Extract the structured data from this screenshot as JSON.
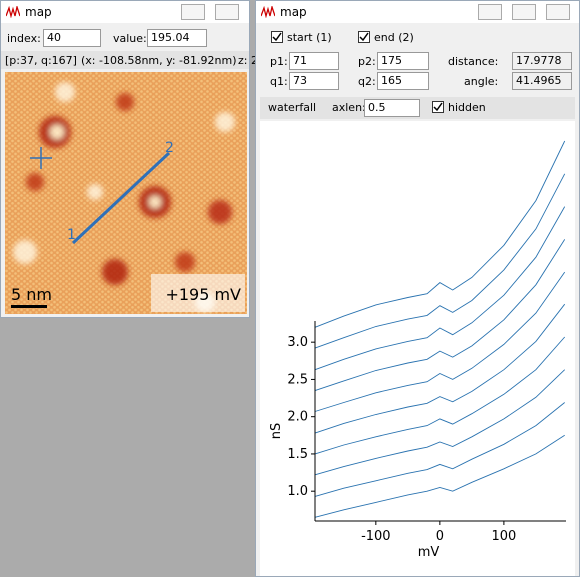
{
  "left_window": {
    "title": "map",
    "index_label": "index:",
    "index": "40",
    "value_label": "value:",
    "value": "195.04",
    "status": [
      "[p:37, q:167]",
      "(x: -108.58nm, y: -81.92nm)",
      "z: 2"
    ],
    "image": {
      "marker_start": "1",
      "marker_end": "2",
      "scale_bar": "5 nm",
      "bias": "+195 mV"
    }
  },
  "right_window": {
    "title": "map",
    "start": "start (1)",
    "end": "end (2)",
    "p1_label": "p1:",
    "p1": "71",
    "p2_label": "p2:",
    "p2": "175",
    "distance_label": "distance:",
    "distance": "17.9778",
    "q1_label": "q1:",
    "q1": "73",
    "q2_label": "q2:",
    "q2": "165",
    "angle_label": "angle:",
    "angle": "41.4965",
    "waterfall": "waterfall",
    "axlen_label": "axlen:",
    "axlen": "0.5",
    "hidden": "hidden",
    "plot": {
      "type": "line",
      "color": "#2a73b0",
      "xlabel": "mV",
      "ylabel": "nS",
      "xlim": [
        -195,
        197
      ],
      "ylim": [
        0.6,
        5.7
      ],
      "xticks": [
        -100,
        0,
        100
      ],
      "yticks": [
        {
          "value": 1.0,
          "label": "1.0"
        },
        {
          "value": 1.5,
          "label": "1.5"
        },
        {
          "value": 2.0,
          "label": "2.0"
        },
        {
          "value": 2.5,
          "label": "2.5"
        },
        {
          "value": 3.0,
          "label": "3.0"
        }
      ],
      "x": [
        -195,
        -150,
        -100,
        -50,
        -20,
        0,
        20,
        50,
        100,
        150,
        195
      ],
      "series": [
        {
          "values": [
            0.65,
            0.75,
            0.85,
            0.95,
            1.0,
            1.05,
            1.0,
            1.12,
            1.3,
            1.5,
            1.75
          ]
        },
        {
          "values": [
            0.93,
            1.04,
            1.14,
            1.24,
            1.29,
            1.36,
            1.3,
            1.43,
            1.63,
            1.88,
            2.19
          ]
        },
        {
          "values": [
            1.22,
            1.33,
            1.44,
            1.54,
            1.59,
            1.66,
            1.6,
            1.73,
            1.97,
            2.26,
            2.63
          ]
        },
        {
          "values": [
            1.5,
            1.62,
            1.73,
            1.83,
            1.88,
            1.97,
            1.9,
            2.04,
            2.3,
            2.63,
            3.07
          ]
        },
        {
          "values": [
            1.78,
            1.91,
            2.03,
            2.13,
            2.18,
            2.27,
            2.2,
            2.34,
            2.63,
            3.01,
            3.51
          ]
        },
        {
          "values": [
            2.07,
            2.19,
            2.32,
            2.42,
            2.47,
            2.58,
            2.5,
            2.65,
            2.97,
            3.39,
            3.94
          ]
        },
        {
          "values": [
            2.35,
            2.48,
            2.62,
            2.72,
            2.77,
            2.88,
            2.8,
            2.95,
            3.3,
            3.77,
            4.38
          ]
        },
        {
          "values": [
            2.63,
            2.77,
            2.91,
            3.01,
            3.06,
            3.19,
            3.1,
            3.26,
            3.63,
            4.14,
            4.82
          ]
        },
        {
          "values": [
            2.92,
            3.06,
            3.21,
            3.31,
            3.36,
            3.49,
            3.4,
            3.56,
            3.97,
            4.52,
            5.26
          ]
        },
        {
          "values": [
            3.2,
            3.35,
            3.5,
            3.6,
            3.65,
            3.8,
            3.7,
            3.87,
            4.3,
            4.9,
            5.7
          ]
        }
      ]
    }
  }
}
